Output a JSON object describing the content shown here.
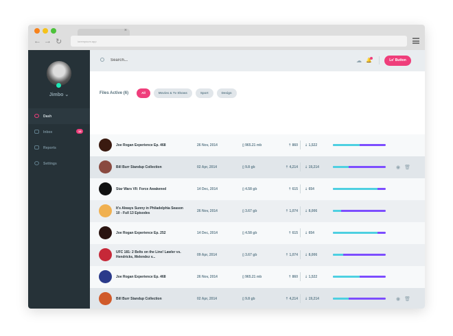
{
  "browser": {
    "url": "lorempsum.app",
    "tab_close": "×",
    "back": "←",
    "forward": "→",
    "reload": "↻"
  },
  "user": {
    "name": "Jimbo",
    "caret": "⌄"
  },
  "sidebar": {
    "items": [
      {
        "label": "Dash",
        "active": true
      },
      {
        "label": "Inbox",
        "badge": "13"
      },
      {
        "label": "Reports"
      },
      {
        "label": "Settings"
      }
    ]
  },
  "topbar": {
    "search_placeholder": "Search...",
    "button": "Le' Button",
    "upload_icon": "☁",
    "bell_icon": "🔔"
  },
  "filters": {
    "title": "Files Active (6)",
    "chips": [
      "All",
      "Movies & Tv Shows",
      "Sport",
      "Design"
    ],
    "active": "All"
  },
  "colors": {
    "accent": "#ef3e7b",
    "sidebar": "#263238",
    "progress_a": "#4dd0e1",
    "progress_b": "#7c4dff"
  },
  "rows": [
    {
      "title": "Joe Rogan Experience Ep. 468",
      "date": "26 Nov, 2014",
      "size": "965.21 mb",
      "up": "860",
      "down": "1,522",
      "progress": 0.5,
      "thumb": "#3a1a10",
      "style": ""
    },
    {
      "title": "Bill Burr Standup Collection",
      "date": "02 Apr, 2014",
      "size": "9.8 gb",
      "up": "4,214",
      "down": "19,214",
      "progress": 0.3,
      "thumb": "#8a4a40",
      "style": "h",
      "actions": true
    },
    {
      "title": "Star Wars VII: Force Awakened",
      "date": "14 Dec, 2014",
      "size": "4.58 gb",
      "up": "615",
      "down": "654",
      "progress": 0.84,
      "thumb": "#111",
      "style": ""
    },
    {
      "title": "It's Always Sunny in Philadelphia Season 10 - Full 13 Episodes",
      "date": "26 Nov, 2014",
      "size": "3.67 gb",
      "up": "1,074",
      "down": "8,006",
      "progress": 0.15,
      "thumb": "#f0b050",
      "style": "g"
    },
    {
      "title": "Joe Rogan Experience Ep. 252",
      "date": "14 Dec, 2014",
      "size": "4.58 gb",
      "up": "615",
      "down": "654",
      "progress": 0.84,
      "thumb": "#2a1410",
      "style": ""
    },
    {
      "title": "UFC 181: 2 Belts on the Line! Lawler vs. Hendricks, Melendez v...",
      "date": "09 Apr, 2014",
      "size": "3.67 gb",
      "up": "1,074",
      "down": "8,006",
      "progress": 0.2,
      "thumb": "#c62838",
      "style": "g"
    },
    {
      "title": "Joe Rogan Experience Ep. 468",
      "date": "26 Nov, 2014",
      "size": "965.21 mb",
      "up": "860",
      "down": "1,522",
      "progress": 0.5,
      "thumb": "#2a3a8a",
      "style": ""
    },
    {
      "title": "Bill Burr Standup Collection",
      "date": "02 Apr, 2014",
      "size": "9.8 gb",
      "up": "4,214",
      "down": "19,214",
      "progress": 0.3,
      "thumb": "#d05a2a",
      "style": "h",
      "actions": true
    }
  ]
}
